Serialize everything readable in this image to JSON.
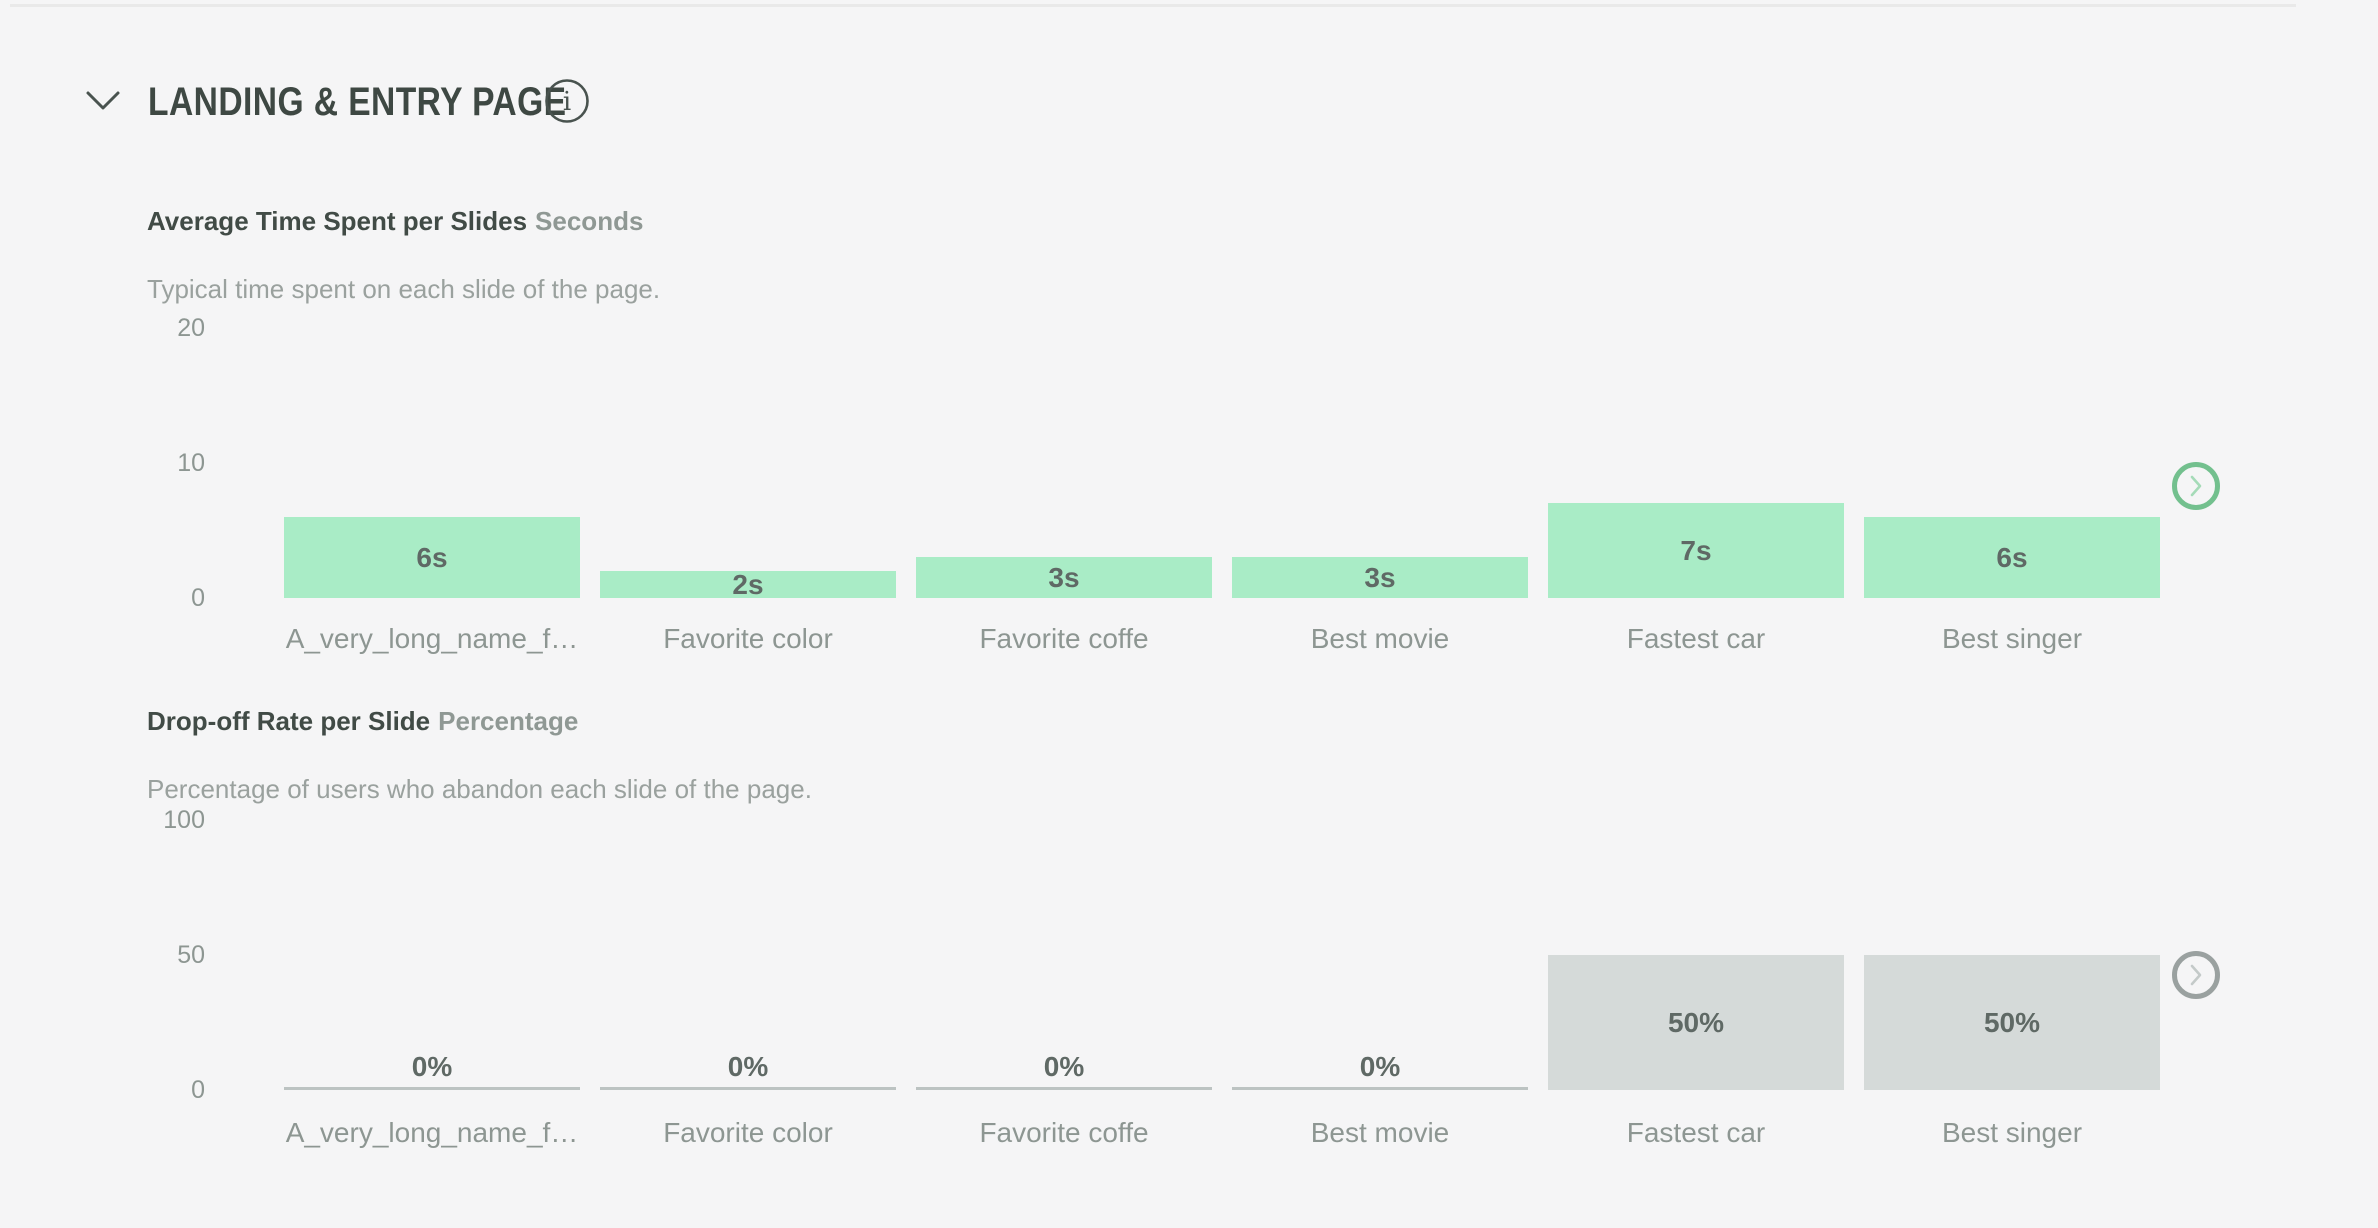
{
  "header": {
    "title": "LANDING & ENTRY PAGE",
    "collapse_icon": "chevron-down-icon",
    "info_icon": "info-icon"
  },
  "colors": {
    "background": "#f5f5f6",
    "green_bar": "#a9ecc6",
    "gray_bar": "#d5dad9",
    "zero_line": "#bcc3c2",
    "green_accent": "#73c08e",
    "gray_accent": "#9aa1a0",
    "text_dark": "#414b46",
    "text_muted": "#8d9692"
  },
  "chart_data": [
    {
      "type": "bar",
      "title": "Average Time Spent per Slides",
      "unit": "Seconds",
      "subtitle": "Typical time spent on each slide of the page.",
      "categories": [
        "A_very_long_name_f…",
        "Favorite color",
        "Favorite coffe",
        "Best movie",
        "Fastest car",
        "Best singer"
      ],
      "values": [
        6,
        2,
        3,
        3,
        7,
        6
      ],
      "value_labels": [
        "6s",
        "2s",
        "3s",
        "3s",
        "7s",
        "6s"
      ],
      "ylim": [
        0,
        20
      ],
      "yticks": [
        20,
        10,
        0
      ],
      "bar_color": "#a9ecc6",
      "grid": "off",
      "next_button": "chevron-right"
    },
    {
      "type": "bar",
      "title": "Drop-off Rate per Slide",
      "unit": "Percentage",
      "subtitle": "Percentage of users who abandon each slide of the page.",
      "categories": [
        "A_very_long_name_f…",
        "Favorite color",
        "Favorite coffe",
        "Best movie",
        "Fastest car",
        "Best singer"
      ],
      "values": [
        0,
        0,
        0,
        0,
        50,
        50
      ],
      "value_labels": [
        "0%",
        "0%",
        "0%",
        "0%",
        "50%",
        "50%"
      ],
      "ylim": [
        0,
        100
      ],
      "yticks": [
        100,
        50,
        0
      ],
      "bar_color": "#d5dad9",
      "grid": "off",
      "next_button": "chevron-right"
    }
  ]
}
